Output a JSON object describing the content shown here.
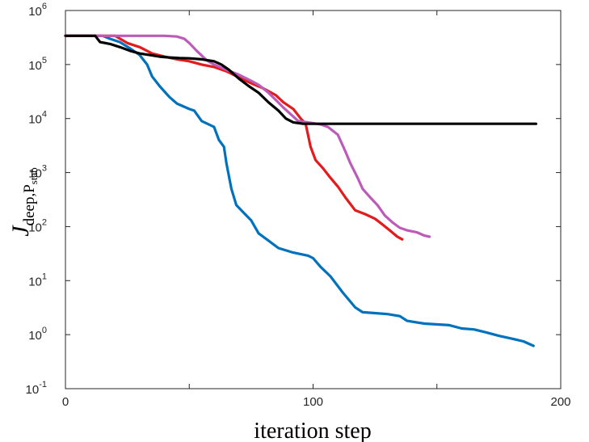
{
  "chart_data": {
    "type": "line",
    "title": "",
    "xlabel": "iteration step",
    "ylabel": {
      "main": "J",
      "sub": "deep,P",
      "subsub": "stab"
    },
    "xlim": [
      0,
      200
    ],
    "ylim": [
      0.1,
      1000000
    ],
    "yscale": "log",
    "grid": false,
    "box": true,
    "x_ticks": [
      0,
      100,
      200
    ],
    "x_tick_labels": [
      "0",
      "100",
      "200"
    ],
    "y_ticks": [
      {
        "value": 0.1,
        "base": "10",
        "exp": "-1"
      },
      {
        "value": 1,
        "base": "10",
        "exp": "0"
      },
      {
        "value": 10,
        "base": "10",
        "exp": "1"
      },
      {
        "value": 100,
        "base": "10",
        "exp": "2"
      },
      {
        "value": 1000,
        "base": "10",
        "exp": "3"
      },
      {
        "value": 10000,
        "base": "10",
        "exp": "4"
      },
      {
        "value": 100000,
        "base": "10",
        "exp": "5"
      },
      {
        "value": 1000000,
        "base": "10",
        "exp": "6"
      }
    ],
    "series": [
      {
        "color": "#0072BD",
        "points": [
          [
            0,
            340000
          ],
          [
            8,
            340000
          ],
          [
            15,
            340000
          ],
          [
            18,
            300000
          ],
          [
            22,
            260000
          ],
          [
            26,
            200000
          ],
          [
            30,
            150000
          ],
          [
            33,
            100000
          ],
          [
            35,
            60000
          ],
          [
            38,
            40000
          ],
          [
            42,
            25000
          ],
          [
            45,
            19000
          ],
          [
            50,
            15000
          ],
          [
            52,
            14000
          ],
          [
            55,
            9000
          ],
          [
            60,
            7000
          ],
          [
            62,
            4000
          ],
          [
            64,
            3000
          ],
          [
            65,
            1500
          ],
          [
            67,
            500
          ],
          [
            69,
            250
          ],
          [
            72,
            180
          ],
          [
            75,
            130
          ],
          [
            78,
            75
          ],
          [
            82,
            55
          ],
          [
            86,
            40
          ],
          [
            92,
            33
          ],
          [
            98,
            29
          ],
          [
            100,
            26
          ],
          [
            103,
            18
          ],
          [
            107,
            12
          ],
          [
            112,
            6
          ],
          [
            117,
            3.2
          ],
          [
            120,
            2.6
          ],
          [
            125,
            2.5
          ],
          [
            130,
            2.4
          ],
          [
            135,
            2.2
          ],
          [
            138,
            1.8
          ],
          [
            145,
            1.6
          ],
          [
            155,
            1.5
          ],
          [
            160,
            1.3
          ],
          [
            165,
            1.25
          ],
          [
            170,
            1.1
          ],
          [
            175,
            0.95
          ],
          [
            180,
            0.85
          ],
          [
            185,
            0.75
          ],
          [
            189,
            0.62
          ]
        ]
      },
      {
        "color": "#E41A1C",
        "points": [
          [
            0,
            340000
          ],
          [
            10,
            340000
          ],
          [
            20,
            340000
          ],
          [
            25,
            250000
          ],
          [
            30,
            210000
          ],
          [
            35,
            160000
          ],
          [
            40,
            140000
          ],
          [
            45,
            125000
          ],
          [
            50,
            115000
          ],
          [
            55,
            100000
          ],
          [
            60,
            90000
          ],
          [
            65,
            75000
          ],
          [
            70,
            58000
          ],
          [
            75,
            45000
          ],
          [
            80,
            36000
          ],
          [
            85,
            27000
          ],
          [
            88,
            20000
          ],
          [
            92,
            15000
          ],
          [
            95,
            10000
          ],
          [
            97,
            8000
          ],
          [
            99,
            3000
          ],
          [
            101,
            1700
          ],
          [
            104,
            1200
          ],
          [
            107,
            800
          ],
          [
            110,
            550
          ],
          [
            113,
            350
          ],
          [
            117,
            200
          ],
          [
            121,
            170
          ],
          [
            125,
            140
          ],
          [
            128,
            110
          ],
          [
            131,
            85
          ],
          [
            134,
            65
          ],
          [
            136,
            58
          ]
        ]
      },
      {
        "color": "#BD5CB8",
        "points": [
          [
            0,
            340000
          ],
          [
            10,
            340000
          ],
          [
            20,
            340000
          ],
          [
            30,
            340000
          ],
          [
            40,
            340000
          ],
          [
            45,
            330000
          ],
          [
            48,
            300000
          ],
          [
            50,
            250000
          ],
          [
            53,
            180000
          ],
          [
            57,
            120000
          ],
          [
            60,
            100000
          ],
          [
            65,
            80000
          ],
          [
            70,
            65000
          ],
          [
            75,
            50000
          ],
          [
            78,
            42000
          ],
          [
            82,
            30000
          ],
          [
            85,
            22000
          ],
          [
            88,
            16000
          ],
          [
            91,
            12000
          ],
          [
            94,
            9000
          ],
          [
            97,
            8600
          ],
          [
            100,
            8200
          ],
          [
            103,
            7800
          ],
          [
            106,
            7000
          ],
          [
            110,
            5000
          ],
          [
            113,
            2500
          ],
          [
            115,
            1500
          ],
          [
            118,
            800
          ],
          [
            120,
            500
          ],
          [
            123,
            350
          ],
          [
            126,
            250
          ],
          [
            129,
            160
          ],
          [
            132,
            120
          ],
          [
            135,
            95
          ],
          [
            138,
            85
          ],
          [
            142,
            78
          ],
          [
            145,
            68
          ],
          [
            147,
            65
          ]
        ]
      },
      {
        "color": "#000000",
        "points": [
          [
            0,
            340000
          ],
          [
            5,
            340000
          ],
          [
            12,
            340000
          ],
          [
            14,
            260000
          ],
          [
            18,
            240000
          ],
          [
            22,
            210000
          ],
          [
            26,
            180000
          ],
          [
            30,
            160000
          ],
          [
            34,
            150000
          ],
          [
            38,
            140000
          ],
          [
            42,
            135000
          ],
          [
            46,
            132000
          ],
          [
            50,
            130000
          ],
          [
            55,
            125000
          ],
          [
            60,
            115000
          ],
          [
            63,
            100000
          ],
          [
            66,
            80000
          ],
          [
            70,
            55000
          ],
          [
            74,
            40000
          ],
          [
            78,
            30000
          ],
          [
            82,
            20000
          ],
          [
            86,
            14000
          ],
          [
            89,
            10000
          ],
          [
            92,
            8500
          ],
          [
            96,
            8000
          ],
          [
            100,
            8000
          ],
          [
            120,
            8000
          ],
          [
            150,
            8000
          ],
          [
            170,
            8000
          ],
          [
            190,
            8000
          ]
        ]
      }
    ]
  }
}
